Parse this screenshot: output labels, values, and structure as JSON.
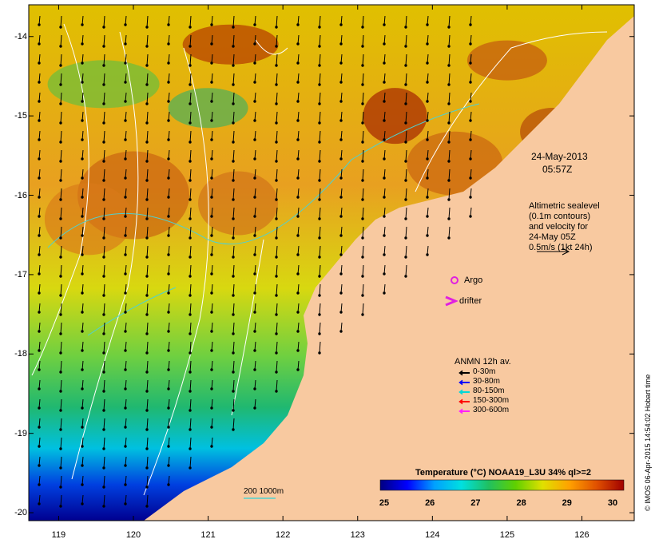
{
  "map": {
    "date_label": "24-May-2013",
    "time_label": "05:57Z",
    "lon_ticks": [
      "119",
      "120",
      "121",
      "122",
      "123",
      "124",
      "125",
      "126"
    ],
    "lat_ticks": [
      "-14",
      "-15",
      "-16",
      "-17",
      "-18",
      "-19",
      "-20"
    ],
    "lon_range": [
      118.6,
      126.7
    ],
    "lat_range": [
      -20.1,
      -13.6
    ],
    "colors": {
      "land": "#f8c9a0",
      "contour": "#ffffff",
      "bathy": "#4fd1d0"
    }
  },
  "altimetry_note": {
    "line1": "Altimetric sealevel",
    "line2": "(0.1m contours)",
    "line3": "and velocity for",
    "line4": "24-May 05Z",
    "line5": "0.5m/s (1kt 24h)"
  },
  "markers": {
    "argo_label": "Argo",
    "drifter_label": "drifter",
    "argo_color": "#e020e0",
    "drifter_color": "#e020e0"
  },
  "anmn_legend": {
    "title": "ANMN 12h av.",
    "items": [
      {
        "label": "0-30m",
        "color": "#000000"
      },
      {
        "label": "30-80m",
        "color": "#0000ff"
      },
      {
        "label": "80-150m",
        "color": "#00d8d8"
      },
      {
        "label": "150-300m",
        "color": "#ff0000"
      },
      {
        "label": "300-600m",
        "color": "#ff20ff"
      }
    ]
  },
  "bathy_legend": {
    "label": "200 1000m"
  },
  "colorbar": {
    "title": "Temperature (°C) NOAA19_L3U 34% ql>=2",
    "ticks": [
      "25",
      "26",
      "27",
      "28",
      "29",
      "30"
    ],
    "stops": [
      "#000080",
      "#0000ff",
      "#00a0ff",
      "#00e0e0",
      "#20c060",
      "#60d000",
      "#e0e000",
      "#ffa000",
      "#e05000",
      "#a00000"
    ]
  },
  "credit": "© IMOS 06-Apr-2015 14:54:02 Hobart time"
}
